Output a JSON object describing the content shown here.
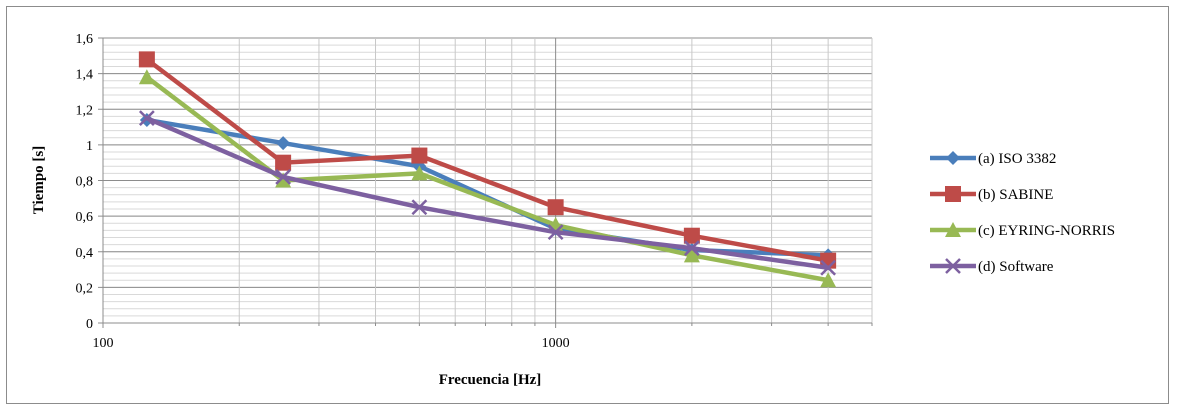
{
  "chart_data": {
    "type": "line",
    "xscale": "log",
    "xlim": [
      100,
      5000
    ],
    "ylim": [
      0,
      1.6
    ],
    "xlabel": "Frecuencia [Hz]",
    "ylabel": "Tiempo [s]",
    "grid": true,
    "legend_position": "right",
    "x": [
      125,
      250,
      500,
      1000,
      2000,
      4000
    ],
    "x_tick_labels": [
      "100",
      "1000"
    ],
    "y_tick_labels": [
      "0",
      "0,2",
      "0,4",
      "0,6",
      "0,8",
      "1",
      "1,2",
      "1,4",
      "1,6"
    ],
    "y_ticks": [
      0,
      0.2,
      0.4,
      0.6,
      0.8,
      1.0,
      1.2,
      1.4,
      1.6
    ],
    "series": [
      {
        "name": "(a) ISO 3382",
        "color": "#4a7ebb",
        "marker": "diamond",
        "values": [
          1.14,
          1.01,
          0.88,
          0.53,
          0.41,
          0.38
        ]
      },
      {
        "name": "(b) SABINE",
        "color": "#be4b48",
        "marker": "square",
        "values": [
          1.48,
          0.9,
          0.94,
          0.65,
          0.49,
          0.35
        ]
      },
      {
        "name": "(c) EYRING-NORRIS",
        "color": "#98b954",
        "marker": "triangle",
        "values": [
          1.38,
          0.8,
          0.84,
          0.55,
          0.38,
          0.24
        ]
      },
      {
        "name": "(d) Software",
        "color": "#7d60a0",
        "marker": "x",
        "values": [
          1.15,
          0.82,
          0.65,
          0.51,
          0.42,
          0.31
        ]
      }
    ]
  }
}
